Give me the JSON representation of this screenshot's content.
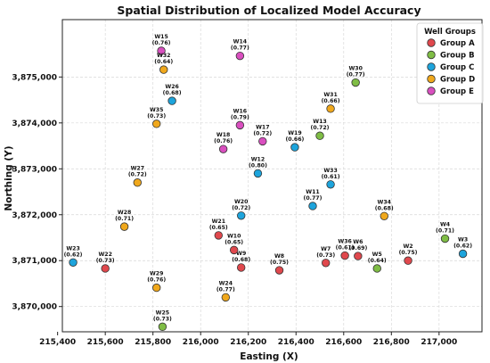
{
  "chart_data": {
    "type": "scatter",
    "title": "Spatial Distribution of Localized Model Accuracy",
    "xlabel": "Easting (X)",
    "ylabel": "Northing (Y)",
    "xlim": [
      215420,
      217180
    ],
    "ylim": [
      3869450,
      3876250
    ],
    "xticks": [
      215400,
      215600,
      215800,
      216000,
      216200,
      216400,
      216600,
      216800,
      217000
    ],
    "yticks": [
      3870000,
      3871000,
      3872000,
      3873000,
      3874000,
      3875000
    ],
    "grid": true,
    "legend": {
      "title": "Well Groups",
      "position": "top-right"
    },
    "groups": [
      {
        "name": "Group A",
        "color": "#e0484d"
      },
      {
        "name": "Group B",
        "color": "#7fbd45"
      },
      {
        "name": "Group C",
        "color": "#1da4dc"
      },
      {
        "name": "Group D",
        "color": "#f0a81c"
      },
      {
        "name": "Group E",
        "color": "#d94fbf"
      }
    ],
    "points": [
      {
        "label": "W2",
        "value": "0.75",
        "x": 216870,
        "y": 3871000,
        "group": "Group A"
      },
      {
        "label": "W3",
        "value": "0.62",
        "x": 217100,
        "y": 3871150,
        "group": "Group C"
      },
      {
        "label": "W4",
        "value": "0.71",
        "x": 217025,
        "y": 3871480,
        "group": "Group B"
      },
      {
        "label": "W5",
        "value": "0.64",
        "x": 216740,
        "y": 3870830,
        "group": "Group B"
      },
      {
        "label": "W6",
        "value": "0.69",
        "x": 216660,
        "y": 3871100,
        "group": "Group A"
      },
      {
        "label": "W7",
        "value": "0.73",
        "x": 216525,
        "y": 3870950,
        "group": "Group A"
      },
      {
        "label": "W8",
        "value": "0.75",
        "x": 216330,
        "y": 3870790,
        "group": "Group A"
      },
      {
        "label": "W9",
        "value": "0.68",
        "x": 216170,
        "y": 3870850,
        "group": "Group A"
      },
      {
        "label": "W10",
        "value": "0.65",
        "x": 216140,
        "y": 3871230,
        "group": "Group A"
      },
      {
        "label": "W11",
        "value": "0.77",
        "x": 216470,
        "y": 3872190,
        "group": "Group C"
      },
      {
        "label": "W12",
        "value": "0.80",
        "x": 216240,
        "y": 3872900,
        "group": "Group C"
      },
      {
        "label": "W13",
        "value": "0.72",
        "x": 216500,
        "y": 3873720,
        "group": "Group B"
      },
      {
        "label": "W14",
        "value": "0.77",
        "x": 216165,
        "y": 3875460,
        "group": "Group E"
      },
      {
        "label": "W15",
        "value": "0.76",
        "x": 215835,
        "y": 3875570,
        "group": "Group E"
      },
      {
        "label": "W16",
        "value": "0.79",
        "x": 216165,
        "y": 3873950,
        "group": "Group E"
      },
      {
        "label": "W17",
        "value": "0.72",
        "x": 216260,
        "y": 3873600,
        "group": "Group E"
      },
      {
        "label": "W18",
        "value": "0.76",
        "x": 216095,
        "y": 3873430,
        "group": "Group E"
      },
      {
        "label": "W19",
        "value": "0.66",
        "x": 216395,
        "y": 3873470,
        "group": "Group C"
      },
      {
        "label": "W20",
        "value": "0.72",
        "x": 216170,
        "y": 3871980,
        "group": "Group C"
      },
      {
        "label": "W21",
        "value": "0.65",
        "x": 216075,
        "y": 3871550,
        "group": "Group A"
      },
      {
        "label": "W22",
        "value": "0.73",
        "x": 215600,
        "y": 3870830,
        "group": "Group A"
      },
      {
        "label": "W23",
        "value": "0.62",
        "x": 215465,
        "y": 3870960,
        "group": "Group C"
      },
      {
        "label": "W24",
        "value": "0.77",
        "x": 216105,
        "y": 3870200,
        "group": "Group D"
      },
      {
        "label": "W25",
        "value": "0.73",
        "x": 215840,
        "y": 3869560,
        "group": "Group B"
      },
      {
        "label": "W26",
        "value": "0.68",
        "x": 215880,
        "y": 3874480,
        "group": "Group C"
      },
      {
        "label": "W27",
        "value": "0.72",
        "x": 215735,
        "y": 3872700,
        "group": "Group D"
      },
      {
        "label": "W28",
        "value": "0.71",
        "x": 215680,
        "y": 3871740,
        "group": "Group D"
      },
      {
        "label": "W29",
        "value": "0.76",
        "x": 215815,
        "y": 3870410,
        "group": "Group D"
      },
      {
        "label": "W30",
        "value": "0.77",
        "x": 216650,
        "y": 3874880,
        "group": "Group B"
      },
      {
        "label": "W31",
        "value": "0.66",
        "x": 216545,
        "y": 3874310,
        "group": "Group D"
      },
      {
        "label": "W32",
        "value": "0.64",
        "x": 215845,
        "y": 3875160,
        "group": "Group D"
      },
      {
        "label": "W33",
        "value": "0.61",
        "x": 216545,
        "y": 3872660,
        "group": "Group C"
      },
      {
        "label": "W34",
        "value": "0.68",
        "x": 216770,
        "y": 3871970,
        "group": "Group D"
      },
      {
        "label": "W35",
        "value": "0.73",
        "x": 215815,
        "y": 3873980,
        "group": "Group D"
      },
      {
        "label": "W36",
        "value": "0.61",
        "x": 216605,
        "y": 3871110,
        "group": "Group A"
      }
    ]
  }
}
